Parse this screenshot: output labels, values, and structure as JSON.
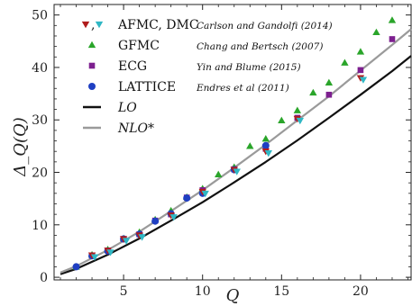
{
  "chart_data": {
    "type": "scatter",
    "xlabel": "Q",
    "ylabel": "Δ_Q(Q)",
    "xlim": [
      0.6,
      23.2
    ],
    "ylim": [
      -0.5,
      52
    ],
    "xticks": [
      5,
      10,
      15,
      20
    ],
    "xtick_labels": [
      "5",
      "10",
      "15",
      "20"
    ],
    "yticks": [
      0,
      10,
      20,
      30,
      40,
      50
    ],
    "ytick_labels": [
      "0",
      "10",
      "20",
      "30",
      "40",
      "50"
    ],
    "grid": false,
    "legend_position": "top-left",
    "series": [
      {
        "name": "AFMC, DMC",
        "reference": "Carlson and Gandolfi (2014)",
        "marker": "down-triangle",
        "color": "#b01c1c",
        "color2": "#2fb7c4",
        "x": [
          3,
          4,
          5,
          6,
          8,
          10,
          12,
          14,
          16,
          20
        ],
        "y": [
          4.2,
          5.1,
          7.3,
          8.0,
          11.8,
          16.3,
          20.5,
          24.0,
          30.2,
          38.0
        ]
      },
      {
        "name": "GFMC",
        "reference": "Chang and Bertsch (2007)",
        "marker": "up-triangle",
        "color": "#2aa52a",
        "x": [
          2,
          3,
          4,
          5,
          6,
          7,
          8,
          9,
          10,
          11,
          12,
          13,
          14,
          15,
          16,
          17,
          18,
          19,
          20,
          21,
          22
        ],
        "y": [
          2.0,
          4.3,
          5.3,
          7.4,
          8.6,
          11.0,
          12.7,
          15.3,
          16.9,
          19.6,
          21.0,
          25.0,
          26.4,
          29.9,
          31.8,
          35.2,
          37.1,
          40.9,
          43.0,
          46.7,
          49.0
        ]
      },
      {
        "name": "ECG",
        "reference": "Yin and Blume (2015)",
        "marker": "square",
        "color": "#7d1f8f",
        "x": [
          3,
          4,
          5,
          6,
          7,
          8,
          9,
          10,
          12,
          14,
          16,
          18,
          20,
          22
        ],
        "y": [
          4.1,
          5.1,
          7.3,
          8.2,
          10.8,
          12.0,
          15.2,
          16.6,
          20.6,
          24.5,
          30.4,
          34.8,
          39.5,
          45.4
        ]
      },
      {
        "name": "LATTICE",
        "reference": "Endres et al (2011)",
        "marker": "circle",
        "color": "#1f3fc2",
        "x": [
          2,
          3,
          4,
          5,
          6,
          7,
          8,
          9,
          10,
          12,
          14
        ],
        "y": [
          2.0,
          4.1,
          5.0,
          7.3,
          8.2,
          10.7,
          12.1,
          15.1,
          16.0,
          20.5,
          25.1
        ]
      }
    ],
    "curves": [
      {
        "name": "LO",
        "color": "#111111",
        "x": [
          1,
          2,
          4,
          6,
          8,
          10,
          12,
          14,
          16,
          18,
          20,
          22,
          23.2
        ],
        "y": [
          0.6,
          1.6,
          4.3,
          7.4,
          10.8,
          14.3,
          18.1,
          22.0,
          26.1,
          30.4,
          34.8,
          39.3,
          42.2
        ]
      },
      {
        "name": "NLO*",
        "color": "#9a9a9a",
        "x": [
          1,
          2,
          4,
          6,
          8,
          10,
          12,
          14,
          16,
          18,
          20,
          22,
          23.2
        ],
        "y": [
          0.9,
          2.1,
          5.2,
          8.7,
          12.6,
          16.6,
          20.9,
          25.3,
          29.9,
          34.5,
          39.4,
          44.3,
          47.3
        ]
      }
    ]
  }
}
